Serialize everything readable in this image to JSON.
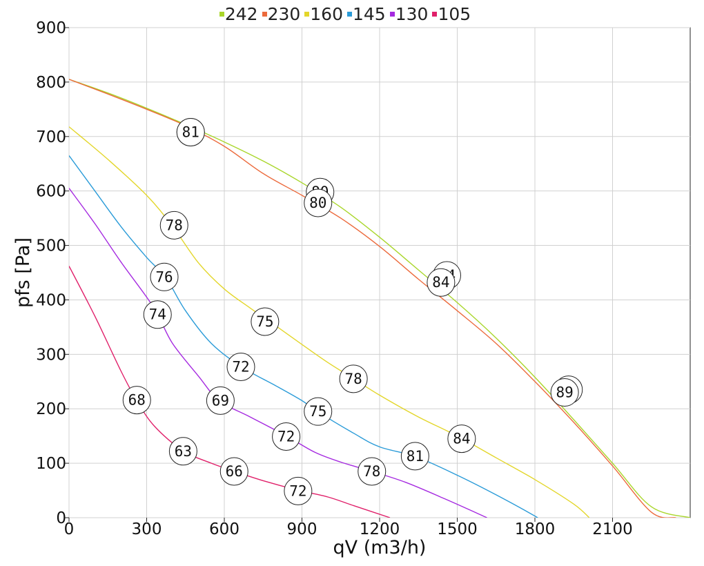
{
  "chart_data": {
    "type": "line",
    "xlabel": "qV (m3/h)",
    "ylabel": "pfs [Pa]",
    "xlim": [
      0,
      2400
    ],
    "ylim": [
      0,
      900
    ],
    "x_ticks": [
      "0",
      "300",
      "600",
      "900",
      "1200",
      "1500",
      "1800",
      "2100"
    ],
    "y_ticks": [
      "0",
      "100",
      "200",
      "300",
      "400",
      "500",
      "600",
      "700",
      "800",
      "900"
    ],
    "grid": true,
    "legend_position": "top",
    "series": [
      {
        "name": "242",
        "color": "#a9d62a",
        "points": [
          [
            0,
            805
          ],
          [
            150,
            780
          ],
          [
            300,
            752
          ],
          [
            450,
            722
          ],
          [
            600,
            690
          ],
          [
            750,
            655
          ],
          [
            900,
            615
          ],
          [
            1050,
            570
          ],
          [
            1200,
            515
          ],
          [
            1350,
            455
          ],
          [
            1500,
            395
          ],
          [
            1650,
            330
          ],
          [
            1800,
            258
          ],
          [
            1950,
            180
          ],
          [
            2100,
            100
          ],
          [
            2250,
            20
          ],
          [
            2400,
            0
          ]
        ],
        "labels": [
          {
            "x": 470,
            "y": 708,
            "text": "81"
          },
          {
            "x": 970,
            "y": 598,
            "text": "80"
          },
          {
            "x": 1460,
            "y": 445,
            "text": "84"
          },
          {
            "x": 1930,
            "y": 235,
            "text": "89"
          }
        ]
      },
      {
        "name": "230",
        "color": "#ec6a3c",
        "points": [
          [
            0,
            805
          ],
          [
            150,
            778
          ],
          [
            300,
            750
          ],
          [
            450,
            720
          ],
          [
            600,
            682
          ],
          [
            750,
            632
          ],
          [
            900,
            592
          ],
          [
            1050,
            550
          ],
          [
            1200,
            498
          ],
          [
            1350,
            438
          ],
          [
            1500,
            380
          ],
          [
            1650,
            320
          ],
          [
            1800,
            250
          ],
          [
            1950,
            175
          ],
          [
            2100,
            95
          ],
          [
            2250,
            10
          ],
          [
            2345,
            0
          ]
        ],
        "labels": [
          {
            "x": 470,
            "y": 708,
            "text": "81"
          },
          {
            "x": 962,
            "y": 578,
            "text": "80"
          },
          {
            "x": 1437,
            "y": 432,
            "text": "84"
          },
          {
            "x": 1915,
            "y": 230,
            "text": "89"
          }
        ]
      },
      {
        "name": "160",
        "color": "#e3d62a",
        "points": [
          [
            0,
            718
          ],
          [
            150,
            658
          ],
          [
            300,
            592
          ],
          [
            400,
            535
          ],
          [
            500,
            468
          ],
          [
            600,
            420
          ],
          [
            700,
            385
          ],
          [
            800,
            352
          ],
          [
            900,
            318
          ],
          [
            1000,
            285
          ],
          [
            1100,
            255
          ],
          [
            1200,
            225
          ],
          [
            1350,
            185
          ],
          [
            1500,
            150
          ],
          [
            1650,
            110
          ],
          [
            1800,
            70
          ],
          [
            1950,
            25
          ],
          [
            2010,
            0
          ]
        ],
        "labels": [
          {
            "x": 406,
            "y": 537,
            "text": "78"
          },
          {
            "x": 757,
            "y": 360,
            "text": "75"
          },
          {
            "x": 1099,
            "y": 255,
            "text": "78"
          },
          {
            "x": 1517,
            "y": 145,
            "text": "84"
          }
        ]
      },
      {
        "name": "145",
        "color": "#2a9bd8",
        "points": [
          [
            0,
            665
          ],
          [
            100,
            600
          ],
          [
            200,
            535
          ],
          [
            300,
            478
          ],
          [
            375,
            440
          ],
          [
            450,
            380
          ],
          [
            550,
            320
          ],
          [
            670,
            276
          ],
          [
            800,
            242
          ],
          [
            900,
            215
          ],
          [
            960,
            195
          ],
          [
            1100,
            155
          ],
          [
            1200,
            130
          ],
          [
            1340,
            112
          ],
          [
            1500,
            78
          ],
          [
            1650,
            42
          ],
          [
            1800,
            3
          ],
          [
            1805,
            0
          ]
        ],
        "labels": [
          {
            "x": 368,
            "y": 442,
            "text": "76"
          },
          {
            "x": 664,
            "y": 277,
            "text": "72"
          },
          {
            "x": 962,
            "y": 195,
            "text": "75"
          },
          {
            "x": 1337,
            "y": 113,
            "text": "81"
          }
        ]
      },
      {
        "name": "130",
        "color": "#a52ae0",
        "points": [
          [
            0,
            605
          ],
          [
            100,
            540
          ],
          [
            200,
            470
          ],
          [
            300,
            405
          ],
          [
            343,
            373
          ],
          [
            400,
            320
          ],
          [
            500,
            260
          ],
          [
            580,
            215
          ],
          [
            700,
            185
          ],
          [
            840,
            150
          ],
          [
            950,
            120
          ],
          [
            1050,
            102
          ],
          [
            1170,
            85
          ],
          [
            1300,
            65
          ],
          [
            1450,
            35
          ],
          [
            1615,
            0
          ]
        ],
        "labels": [
          {
            "x": 342,
            "y": 373,
            "text": "74"
          },
          {
            "x": 585,
            "y": 215,
            "text": "69"
          },
          {
            "x": 839,
            "y": 149,
            "text": "72"
          },
          {
            "x": 1170,
            "y": 85,
            "text": "78"
          }
        ]
      },
      {
        "name": "105",
        "color": "#e0206a",
        "points": [
          [
            0,
            462
          ],
          [
            100,
            370
          ],
          [
            200,
            270
          ],
          [
            262,
            215
          ],
          [
            330,
            168
          ],
          [
            440,
            123
          ],
          [
            550,
            100
          ],
          [
            640,
            85
          ],
          [
            750,
            68
          ],
          [
            880,
            51
          ],
          [
            1000,
            38
          ],
          [
            1100,
            22
          ],
          [
            1240,
            0
          ]
        ],
        "labels": [
          {
            "x": 262,
            "y": 216,
            "text": "68"
          },
          {
            "x": 441,
            "y": 122,
            "text": "63"
          },
          {
            "x": 638,
            "y": 85,
            "text": "66"
          },
          {
            "x": 885,
            "y": 49,
            "text": "72"
          }
        ]
      }
    ]
  }
}
